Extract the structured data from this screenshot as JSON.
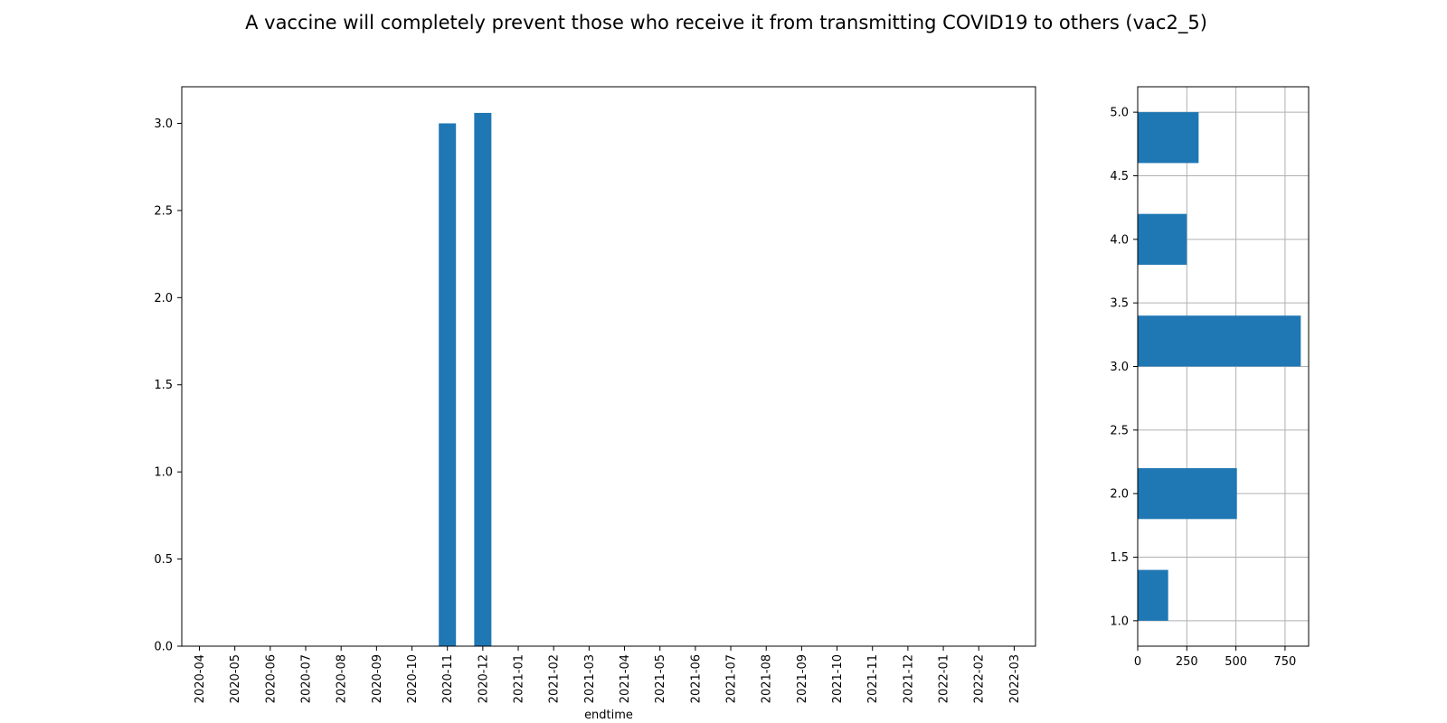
{
  "title": "A vaccine will completely prevent those who receive it from transmitting COVID19 to others (vac2_5)",
  "colors": {
    "bar": "#1f77b4",
    "grid": "#b0b0b0",
    "axis": "#000000"
  },
  "chart_data": [
    {
      "type": "bar",
      "orientation": "vertical",
      "categories": [
        "2020-04",
        "2020-05",
        "2020-06",
        "2020-07",
        "2020-08",
        "2020-09",
        "2020-10",
        "2020-11",
        "2020-12",
        "2021-01",
        "2021-02",
        "2021-03",
        "2021-04",
        "2021-05",
        "2021-06",
        "2021-07",
        "2021-08",
        "2021-09",
        "2021-10",
        "2021-11",
        "2021-12",
        "2022-01",
        "2022-02",
        "2022-03"
      ],
      "values": [
        0,
        0,
        0,
        0,
        0,
        0,
        0,
        3.0,
        3.06,
        0,
        0,
        0,
        0,
        0,
        0,
        0,
        0,
        0,
        0,
        0,
        0,
        0,
        0,
        0
      ],
      "xlabel": "endtime",
      "ylabel": "",
      "ylim": [
        0,
        3.21
      ],
      "yticks": [
        "0.0",
        "0.5",
        "1.0",
        "1.5",
        "2.0",
        "2.5",
        "3.0"
      ],
      "grid": false
    },
    {
      "type": "bar",
      "orientation": "horizontal",
      "bins": [
        {
          "from": 1.0,
          "to": 1.4,
          "count": 155
        },
        {
          "from": 1.8,
          "to": 2.2,
          "count": 505
        },
        {
          "from": 3.0,
          "to": 3.4,
          "count": 830
        },
        {
          "from": 3.8,
          "to": 4.2,
          "count": 250
        },
        {
          "from": 4.6,
          "to": 5.0,
          "count": 310
        }
      ],
      "xlim": [
        0,
        870
      ],
      "ylim": [
        0.8,
        5.2
      ],
      "xticks": [
        "0",
        "250",
        "500",
        "750"
      ],
      "yticks": [
        "1.0",
        "1.5",
        "2.0",
        "2.5",
        "3.0",
        "3.5",
        "4.0",
        "4.5",
        "5.0"
      ],
      "grid": true
    }
  ]
}
